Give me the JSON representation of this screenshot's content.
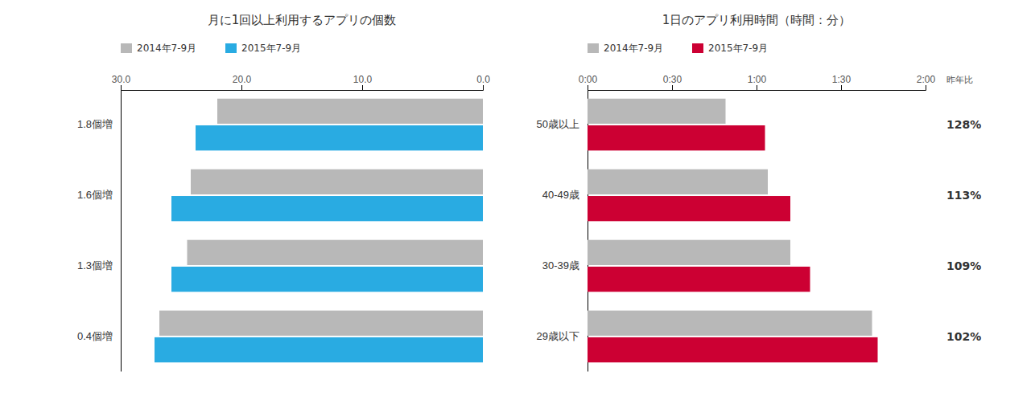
{
  "chart_data": [
    {
      "type": "bar",
      "orientation": "horizontal",
      "title": "月に1回以上利用するアプリの個数",
      "categories": [
        "0.4個増",
        "1.3個増",
        "1.6個増",
        "1.8個増"
      ],
      "series": [
        {
          "name": "2014年7-9月",
          "color": "#b8b8b8",
          "values": [
            26.8,
            24.5,
            24.2,
            22.0
          ]
        },
        {
          "name": "2015年7-9月",
          "color": "#29abe2",
          "values": [
            27.2,
            25.8,
            25.8,
            23.8
          ]
        }
      ],
      "xlim": [
        30,
        0
      ],
      "xticks": [
        {
          "value": 30,
          "label": "30.0"
        },
        {
          "value": 20,
          "label": "20.0"
        },
        {
          "value": 10,
          "label": "10.0"
        },
        {
          "value": 0,
          "label": "0.0"
        }
      ],
      "grid": false,
      "legend": "upper left"
    },
    {
      "type": "bar",
      "orientation": "horizontal",
      "title": "1日のアプリ利用時間（時間：分）",
      "categories": [
        "29歳以下",
        "30-39歳",
        "40-49歳",
        "50歳以上"
      ],
      "series": [
        {
          "name": "2014年7-9月",
          "color": "#b8b8b8",
          "values": [
            101,
            72,
            64,
            49
          ]
        },
        {
          "name": "2015年7-9月",
          "color": "#cc0033",
          "values": [
            103,
            79,
            72,
            63
          ]
        }
      ],
      "xlim": [
        0,
        120
      ],
      "xticks": [
        {
          "value": 0,
          "label": "0:00"
        },
        {
          "value": 30,
          "label": "0:30"
        },
        {
          "value": 60,
          "label": "1:00"
        },
        {
          "value": 90,
          "label": "1:30"
        },
        {
          "value": 120,
          "label": "2:00"
        }
      ],
      "grid": false,
      "legend": "upper left",
      "annotations": {
        "title": "昨年比",
        "labels": [
          "102%",
          "109%",
          "113%",
          "128%"
        ]
      }
    }
  ]
}
